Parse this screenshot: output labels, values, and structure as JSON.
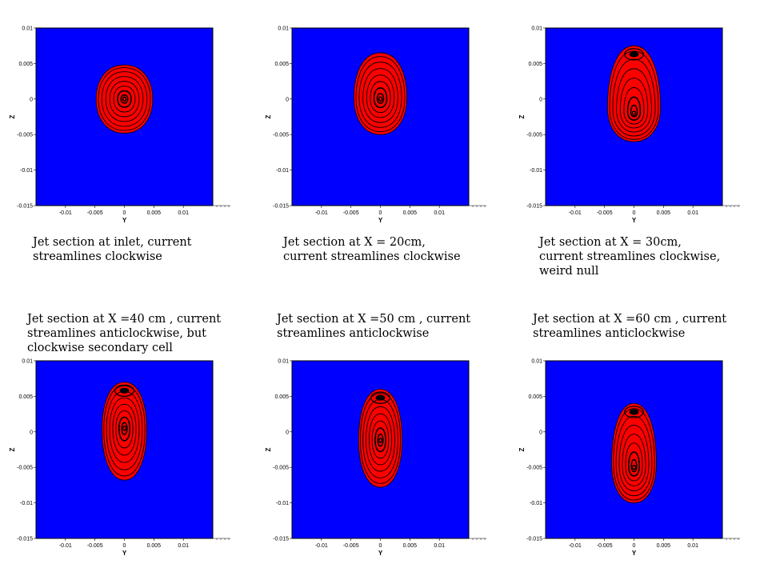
{
  "colors": {
    "background": "#0000ff",
    "jet": "#ff0000",
    "streamline": "#000000"
  },
  "axes": {
    "xlabel": "Y",
    "ylabel": "Z",
    "xlim": [
      -0.015,
      0.015
    ],
    "ylim": [
      -0.015,
      0.01
    ],
    "xticks": [
      "-0.01",
      "-0.005",
      "0",
      "0.005",
      "0.01"
    ],
    "yticks": [
      "0.01",
      "0.005",
      "0",
      "-0.005",
      "-0.01",
      "-0.015"
    ]
  },
  "chart_data": [
    {
      "type": "contour",
      "caption": [
        "Jet section at inlet, current",
        "streamlines clockwise"
      ],
      "core_z": 0.0,
      "top_z": 0.0048,
      "bottom_z": -0.0048,
      "half_width": 0.0048,
      "secondary_cell": false
    },
    {
      "type": "contour",
      "caption": [
        "Jet section at X = 20cm,",
        "current streamlines clockwise"
      ],
      "core_z": 0.0,
      "top_z": 0.0065,
      "bottom_z": -0.005,
      "half_width": 0.0045,
      "secondary_cell": false
    },
    {
      "type": "contour",
      "caption": [
        "Jet section at X = 30cm,",
        "current streamlines clockwise,",
        "weird null"
      ],
      "core_z": -0.002,
      "top_z": 0.0075,
      "bottom_z": -0.006,
      "half_width": 0.0045,
      "secondary_cell": true
    },
    {
      "type": "contour",
      "caption": [
        "Jet section at X =40 cm , current",
        "streamlines anticlockwise, but",
        "clockwise secondary cell"
      ],
      "core_z": 0.0005,
      "top_z": 0.007,
      "bottom_z": -0.0068,
      "half_width": 0.0038,
      "secondary_cell": true
    },
    {
      "type": "contour",
      "caption": [
        "Jet section at X =50 cm , current",
        "streamlines anticlockwise"
      ],
      "core_z": -0.0012,
      "top_z": 0.006,
      "bottom_z": -0.0078,
      "half_width": 0.0037,
      "secondary_cell": true
    },
    {
      "type": "contour",
      "caption": [
        "Jet section at X =60 cm , current",
        "streamlines anticlockwise"
      ],
      "core_z": -0.005,
      "top_z": 0.004,
      "bottom_z": -0.01,
      "half_width": 0.0038,
      "secondary_cell": true
    }
  ]
}
